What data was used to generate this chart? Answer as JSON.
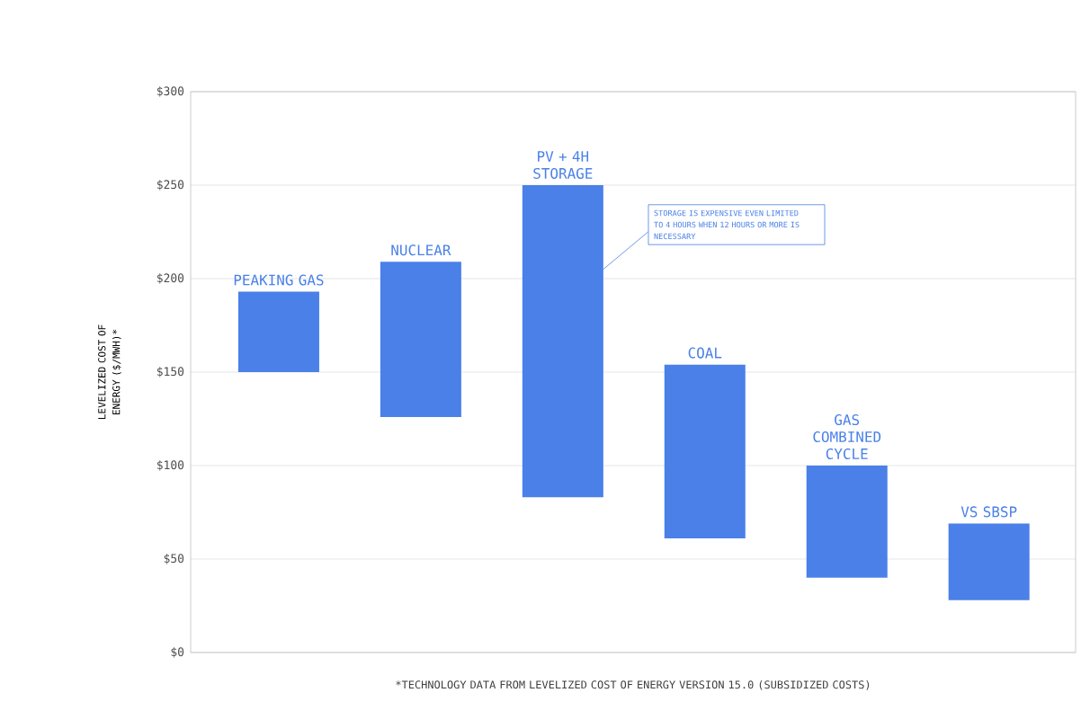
{
  "chart_data": {
    "type": "bar",
    "categories": [
      "PEAKING GAS",
      "NUCLEAR",
      "PV + 4H STORAGE",
      "COAL",
      "GAS COMBINED CYCLE",
      "VS SBSP"
    ],
    "base": [
      150,
      126,
      83,
      61,
      40,
      28
    ],
    "values": [
      43,
      83,
      167,
      93,
      60,
      41
    ],
    "color": "#4a80e8",
    "ylabel": "LEVELIZED COST OF ENERGY ($/MWH)*",
    "ylim": [
      0,
      300
    ],
    "yticks": [
      {
        "value": 0,
        "label": "$0"
      },
      {
        "value": 50,
        "label": "$50"
      },
      {
        "value": 100,
        "label": "$100"
      },
      {
        "value": 150,
        "label": "$150"
      },
      {
        "value": 200,
        "label": "$200"
      },
      {
        "value": 250,
        "label": "$250"
      },
      {
        "value": 300,
        "label": "$300"
      }
    ],
    "grid": "y",
    "annotations": [
      "STORAGE IS EXPENSIVE EVEN LIMITED TO 4 HOURS WHEN 12 HOURS OR MORE IS NECESSARY",
      "*TECHNOLOGY DATA FROM LEVELIZED COST OF ENERGY VERSION 15.0 (SUBSIDIZED COSTS)"
    ]
  }
}
